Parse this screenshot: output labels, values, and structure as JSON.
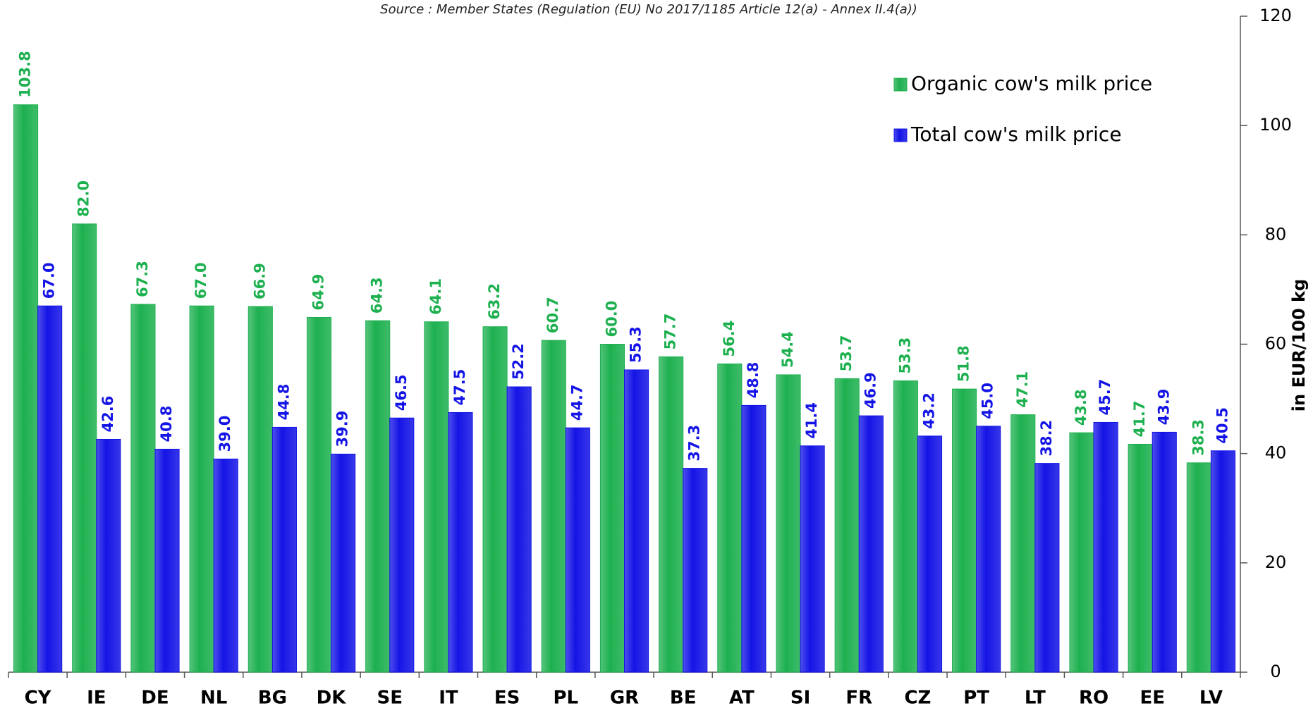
{
  "chart_data": {
    "type": "bar",
    "subtitle": "Source : Member States (Regulation (EU) No 2017/1185 Article 12(a) - Annex II.4(a))",
    "y_axis_label": "in EUR/100 kg",
    "categories": [
      "CY",
      "IE",
      "DE",
      "NL",
      "BG",
      "DK",
      "SE",
      "IT",
      "ES",
      "PL",
      "GR",
      "BE",
      "AT",
      "SI",
      "FR",
      "CZ",
      "PT",
      "LT",
      "RO",
      "EE",
      "LV"
    ],
    "series": [
      {
        "name": "Organic cow's milk price",
        "color": "#1db04f",
        "values": [
          103.8,
          82.0,
          67.3,
          67.0,
          66.9,
          64.9,
          64.3,
          64.1,
          63.2,
          60.7,
          60.0,
          57.7,
          56.4,
          54.4,
          53.7,
          53.3,
          51.8,
          47.1,
          43.8,
          41.7,
          38.3
        ],
        "value_labels": [
          "103.8",
          "82.0",
          "67.3",
          "67.0",
          "66.9",
          "64.9",
          "64.3",
          "64.1",
          "63.2",
          "60.7",
          "60.0",
          "57.7",
          "56.4",
          "54.4",
          "53.7",
          "53.3",
          "51.8",
          "47.1",
          "43.8",
          "41.7",
          "38.3"
        ]
      },
      {
        "name": "Total cow's milk price",
        "color": "#1414e6",
        "values": [
          67.0,
          42.6,
          40.8,
          39.0,
          44.8,
          39.9,
          46.5,
          47.5,
          52.2,
          44.7,
          55.3,
          37.3,
          48.8,
          41.4,
          46.9,
          43.2,
          45.0,
          38.2,
          45.7,
          43.9,
          40.5
        ],
        "value_labels": [
          "67.0",
          "42.6",
          "40.8",
          "39.0",
          "44.8",
          "39.9",
          "46.5",
          "47.5",
          "52.2",
          "44.7",
          "55.3",
          "37.3",
          "48.8",
          "41.4",
          "46.9",
          "43.2",
          "45.0",
          "38.2",
          "45.7",
          "43.9",
          "40.5"
        ]
      }
    ],
    "ylim": [
      0,
      120
    ],
    "yticks": [
      0,
      20,
      40,
      60,
      80,
      100,
      120
    ],
    "y_axis_side": "right",
    "grid": false,
    "legend_position": "upper right"
  }
}
